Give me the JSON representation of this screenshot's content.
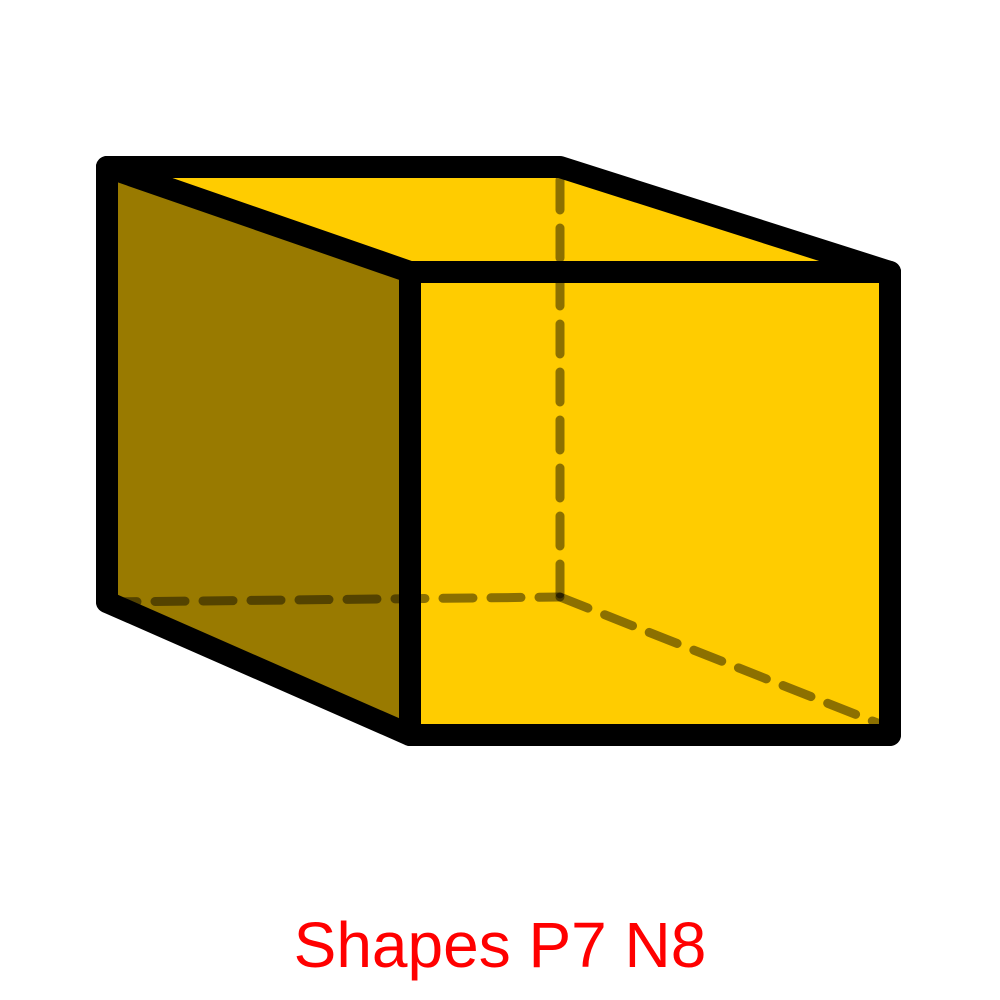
{
  "caption": "Shapes P7 N8",
  "colors": {
    "background": "#ffffff",
    "front_face": "#ffcc00",
    "inner_face": "#ffcc00",
    "side_face": "#997a00",
    "edge": "#000000",
    "hidden_edge": "#000000",
    "caption": "#ff0000"
  }
}
